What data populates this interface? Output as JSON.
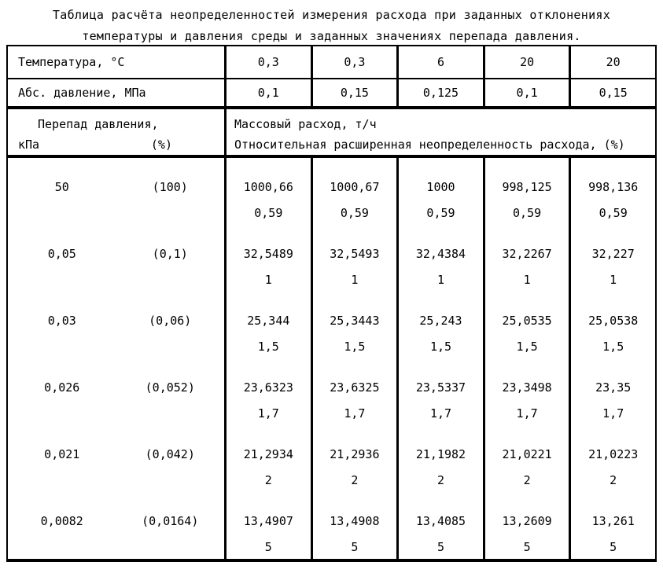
{
  "title": {
    "line1": "Таблица расчёта неопределенностей измерения расхода при заданных отклонениях",
    "line2": "температуры и давления среды и заданных значениях перепада давления."
  },
  "table": {
    "temperature": {
      "label": "Температура, °С",
      "values": [
        "0,3",
        "0,3",
        "6",
        "20",
        "20"
      ]
    },
    "abs_pressure": {
      "label": "Абс. давление, МПа",
      "values": [
        "0,1",
        "0,15",
        "0,125",
        "0,1",
        "0,15"
      ]
    },
    "dp_header": {
      "line1": "Перепад давления,",
      "unit": "кПа",
      "pct": "(%)"
    },
    "flow_header": {
      "line1": "Массовый расход, т/ч",
      "line2": "Относительная расширенная неопределенность расхода, (%)"
    },
    "rows": [
      {
        "dp_kpa": "50",
        "dp_pct": "(100)",
        "flows": [
          "1000,66",
          "1000,67",
          "1000",
          "998,125",
          "998,136"
        ],
        "uncertainty": "0,59"
      },
      {
        "dp_kpa": "0,05",
        "dp_pct": "(0,1)",
        "flows": [
          "32,5489",
          "32,5493",
          "32,4384",
          "32,2267",
          "32,227"
        ],
        "uncertainty": "1"
      },
      {
        "dp_kpa": "0,03",
        "dp_pct": "(0,06)",
        "flows": [
          "25,344",
          "25,3443",
          "25,243",
          "25,0535",
          "25,0538"
        ],
        "uncertainty": "1,5"
      },
      {
        "dp_kpa": "0,026",
        "dp_pct": "(0,052)",
        "flows": [
          "23,6323",
          "23,6325",
          "23,5337",
          "23,3498",
          "23,35"
        ],
        "uncertainty": "1,7"
      },
      {
        "dp_kpa": "0,021",
        "dp_pct": "(0,042)",
        "flows": [
          "21,2934",
          "21,2936",
          "21,1982",
          "21,0221",
          "21,0223"
        ],
        "uncertainty": "2"
      },
      {
        "dp_kpa": "0,0082",
        "dp_pct": "(0,0164)",
        "flows": [
          "13,4907",
          "13,4908",
          "13,4085",
          "13,2609",
          "13,261"
        ],
        "uncertainty": "5"
      }
    ]
  }
}
